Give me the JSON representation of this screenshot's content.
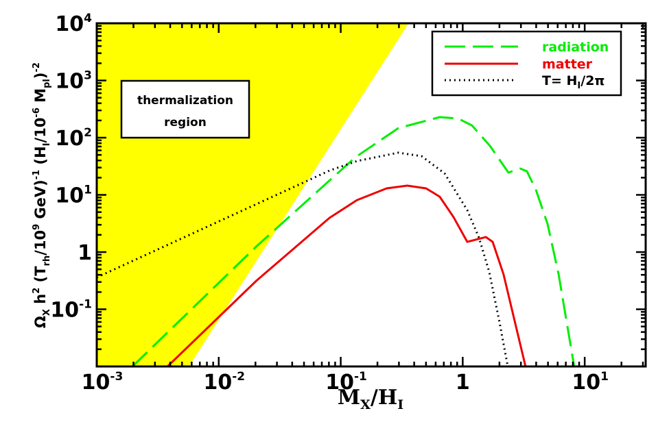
{
  "chart_data": {
    "type": "line",
    "xscale": "log",
    "yscale": "log",
    "xlim": [
      0.001,
      31.6
    ],
    "ylim": [
      0.01,
      10000
    ],
    "xlabel": {
      "main": "M",
      "sub1": "X",
      "slash": "/H",
      "sub2": "I"
    },
    "ylabel": [
      {
        "t": "Ω",
        "s": ""
      },
      {
        "t": "X",
        "s": "sub"
      },
      {
        "t": " h",
        "s": ""
      },
      {
        "t": "2",
        "s": "sup"
      },
      {
        "t": " (T",
        "s": ""
      },
      {
        "t": "rh",
        "s": "sub"
      },
      {
        "t": "/10",
        "s": ""
      },
      {
        "t": "9",
        "s": "sup"
      },
      {
        "t": " GeV)",
        "s": ""
      },
      {
        "t": "-1",
        "s": "sup"
      },
      {
        "t": " (H",
        "s": ""
      },
      {
        "t": "I",
        "s": "sub"
      },
      {
        "t": "/10",
        "s": ""
      },
      {
        "t": "-6",
        "s": "sup"
      },
      {
        "t": " M",
        "s": ""
      },
      {
        "t": "pl",
        "s": "sub"
      },
      {
        "t": ")",
        "s": ""
      },
      {
        "t": "-2",
        "s": "sup"
      }
    ],
    "xticks": [
      {
        "value": 0.001,
        "base": "10",
        "exp": "-3"
      },
      {
        "value": 0.01,
        "base": "10",
        "exp": "-2"
      },
      {
        "value": 0.1,
        "base": "10",
        "exp": "-1"
      },
      {
        "value": 1,
        "base": "1",
        "exp": ""
      },
      {
        "value": 10,
        "base": "10",
        "exp": "1"
      }
    ],
    "yticks": [
      {
        "value": 10000,
        "base": "10",
        "exp": "4"
      },
      {
        "value": 1000,
        "base": "10",
        "exp": "3"
      },
      {
        "value": 100,
        "base": "10",
        "exp": "2"
      },
      {
        "value": 10,
        "base": "10",
        "exp": "1"
      },
      {
        "value": 1,
        "base": "1",
        "exp": ""
      },
      {
        "value": 0.1,
        "base": "10",
        "exp": "-1"
      }
    ],
    "region": {
      "label_line1": "thermalization",
      "label_line2": "region",
      "color": "#ffff00",
      "boundary": [
        [
          0.0057,
          0.01
        ],
        [
          0.36,
          10000
        ]
      ]
    },
    "series": [
      {
        "name": "radiation",
        "color": "#00ee00",
        "style": "dashed",
        "points": [
          [
            0.00196,
            0.01
          ],
          [
            0.0203,
            1.25
          ],
          [
            0.131,
            45
          ],
          [
            0.297,
            147
          ],
          [
            0.647,
            229
          ],
          [
            0.918,
            216
          ],
          [
            1.19,
            164
          ],
          [
            1.67,
            72
          ],
          [
            2.37,
            24.5
          ],
          [
            2.95,
            28.9
          ],
          [
            3.36,
            25.9
          ],
          [
            3.98,
            12.3
          ],
          [
            4.96,
            3.1
          ],
          [
            6.11,
            0.41
          ],
          [
            8.2,
            0.01
          ]
        ]
      },
      {
        "name": "matter",
        "color": "#ee0000",
        "style": "solid",
        "points": [
          [
            0.0038,
            0.01
          ],
          [
            0.0203,
            0.314
          ],
          [
            0.081,
            3.97
          ],
          [
            0.136,
            8.1
          ],
          [
            0.238,
            13
          ],
          [
            0.351,
            14.5
          ],
          [
            0.5,
            13
          ],
          [
            0.647,
            9.3
          ],
          [
            0.84,
            4.1
          ],
          [
            1.09,
            1.51
          ],
          [
            1.55,
            1.83
          ],
          [
            1.76,
            1.51
          ],
          [
            2.16,
            0.41
          ],
          [
            3.27,
            0.01
          ]
        ]
      },
      {
        "name": "T= H_I/2π",
        "color": "#000000",
        "style": "dotted",
        "points": [
          [
            0.001,
            0.36
          ],
          [
            0.081,
            26.6
          ],
          [
            0.136,
            39
          ],
          [
            0.297,
            54.6
          ],
          [
            0.46,
            47.5
          ],
          [
            0.71,
            23.8
          ],
          [
            1.09,
            5.4
          ],
          [
            1.36,
            1.78
          ],
          [
            1.65,
            0.45
          ],
          [
            2.0,
            0.06
          ],
          [
            2.34,
            0.01
          ]
        ]
      }
    ],
    "legend": {
      "placement": "top-right",
      "entries": [
        {
          "label": "radiation",
          "color": "#00ee00",
          "style": "dashed"
        },
        {
          "label": "matter",
          "color": "#ee0000",
          "style": "solid"
        },
        {
          "label_main": "T= H",
          "label_sub": "I",
          "label_tail": "/2π",
          "color": "#000000",
          "style": "dotted"
        }
      ]
    }
  }
}
